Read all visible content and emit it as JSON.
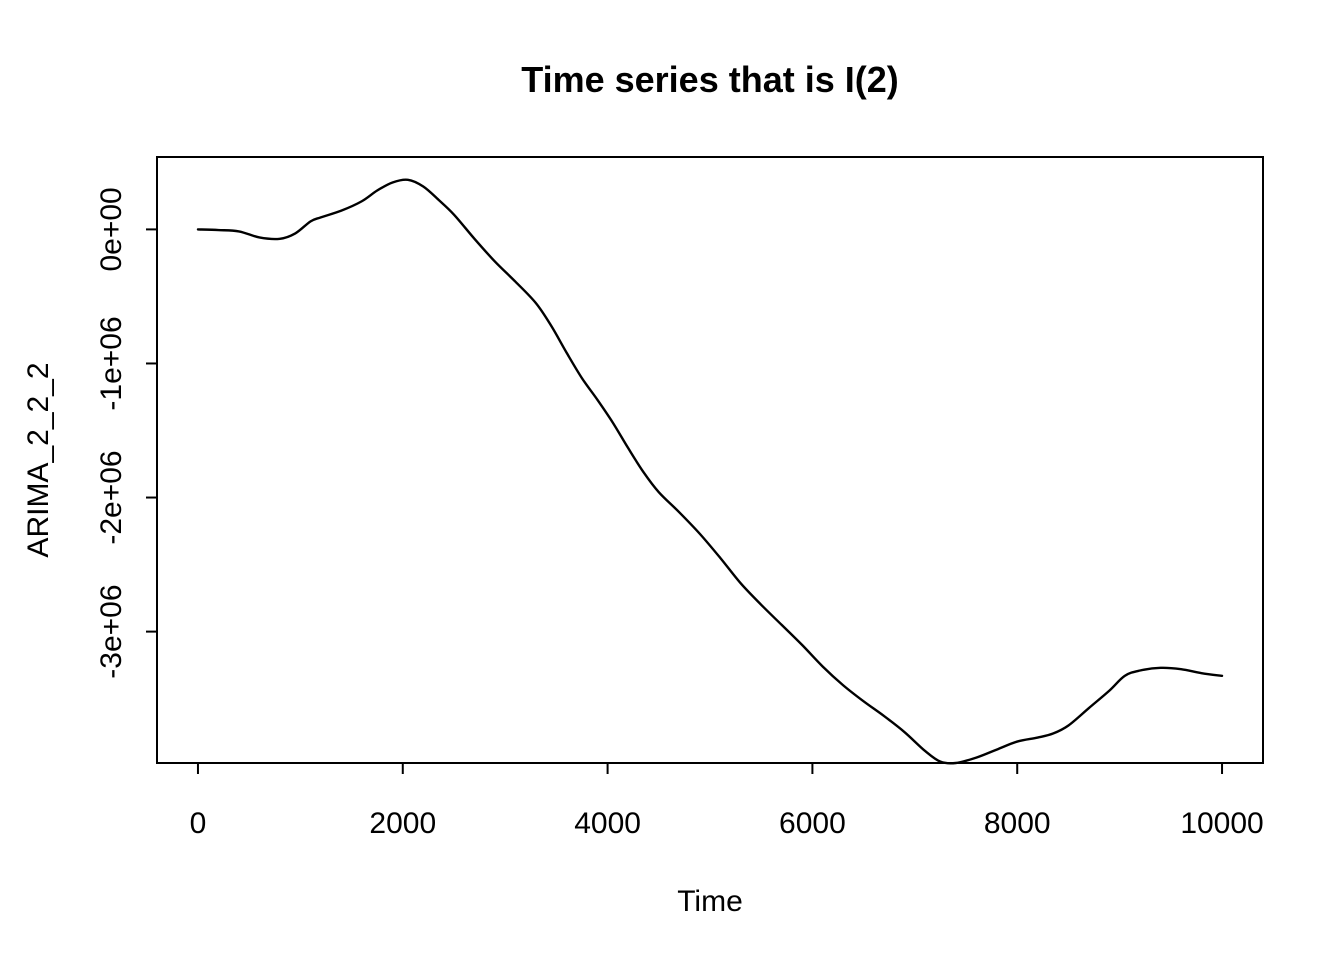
{
  "chart_data": {
    "type": "line",
    "title": "Time series that is I(2)",
    "xlabel": "Time",
    "ylabel": "ARIMA_2_2_2",
    "xlim": [
      -400,
      10400
    ],
    "ylim": [
      -3980000,
      540000
    ],
    "x_ticks": [
      0,
      2000,
      4000,
      6000,
      8000,
      10000
    ],
    "x_tick_labels": [
      "0",
      "2000",
      "4000",
      "6000",
      "8000",
      "10000"
    ],
    "y_ticks": [
      0,
      -1000000,
      -2000000,
      -3000000
    ],
    "y_tick_labels": [
      "0e+00",
      "-1e+06",
      "-2e+06",
      "-3e+06"
    ],
    "grid": false,
    "legend": "none",
    "series": [
      {
        "color": "#000000",
        "x": [
          0,
          200,
          400,
          600,
          800,
          950,
          1100,
          1200,
          1400,
          1600,
          1750,
          1900,
          2050,
          2200,
          2350,
          2500,
          2700,
          2900,
          3100,
          3300,
          3450,
          3600,
          3750,
          3900,
          4050,
          4200,
          4350,
          4500,
          4700,
          4900,
          5100,
          5300,
          5500,
          5700,
          5900,
          6100,
          6300,
          6500,
          6700,
          6900,
          7100,
          7250,
          7400,
          7600,
          7800,
          8000,
          8200,
          8350,
          8500,
          8700,
          8900,
          9050,
          9200,
          9400,
          9600,
          9800,
          10000
        ],
        "y": [
          0,
          -5000,
          -15000,
          -60000,
          -70000,
          -30000,
          60000,
          90000,
          140000,
          210000,
          290000,
          350000,
          370000,
          320000,
          220000,
          110000,
          -70000,
          -240000,
          -390000,
          -550000,
          -720000,
          -920000,
          -1110000,
          -1270000,
          -1440000,
          -1630000,
          -1810000,
          -1960000,
          -2110000,
          -2270000,
          -2450000,
          -2640000,
          -2800000,
          -2950000,
          -3100000,
          -3260000,
          -3400000,
          -3520000,
          -3630000,
          -3750000,
          -3890000,
          -3970000,
          -3980000,
          -3940000,
          -3880000,
          -3820000,
          -3790000,
          -3760000,
          -3700000,
          -3570000,
          -3440000,
          -3330000,
          -3290000,
          -3270000,
          -3280000,
          -3310000,
          -3330000
        ]
      }
    ]
  }
}
